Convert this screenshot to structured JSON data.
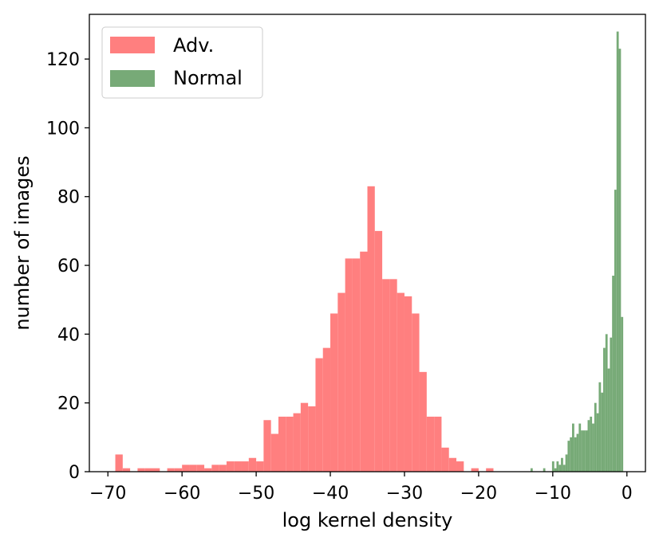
{
  "chart_data": {
    "type": "bar",
    "title": "",
    "xlabel": "log kernel density",
    "ylabel": "number of images",
    "xlim": [
      -72.5,
      2.5
    ],
    "ylim": [
      0,
      133
    ],
    "xticks": [
      -70,
      -60,
      -50,
      -40,
      -30,
      -20,
      -10,
      0
    ],
    "xtick_labels": [
      "−70",
      "−60",
      "−50",
      "−40",
      "−30",
      "−20",
      "−10",
      "0"
    ],
    "yticks": [
      0,
      20,
      40,
      60,
      80,
      100,
      120
    ],
    "ytick_labels": [
      "0",
      "20",
      "40",
      "60",
      "80",
      "100",
      "120"
    ],
    "grid": false,
    "legend_position": "top-left",
    "series": [
      {
        "name": "Adv.",
        "color": "#ff7f7f",
        "bin_width": 1,
        "bins": [
          [
            -69,
            5
          ],
          [
            -68,
            1
          ],
          [
            -66,
            1
          ],
          [
            -65,
            1
          ],
          [
            -64,
            1
          ],
          [
            -62,
            1
          ],
          [
            -61,
            1
          ],
          [
            -60,
            2
          ],
          [
            -59,
            2
          ],
          [
            -58,
            2
          ],
          [
            -57,
            1
          ],
          [
            -56,
            2
          ],
          [
            -55,
            2
          ],
          [
            -54,
            3
          ],
          [
            -53,
            3
          ],
          [
            -52,
            3
          ],
          [
            -51,
            4
          ],
          [
            -50,
            3
          ],
          [
            -49,
            15
          ],
          [
            -48,
            11
          ],
          [
            -47,
            16
          ],
          [
            -46,
            16
          ],
          [
            -45,
            17
          ],
          [
            -44,
            20
          ],
          [
            -43,
            19
          ],
          [
            -42,
            33
          ],
          [
            -41,
            36
          ],
          [
            -40,
            46
          ],
          [
            -39,
            52
          ],
          [
            -38,
            62
          ],
          [
            -37,
            62
          ],
          [
            -36,
            64
          ],
          [
            -35,
            83
          ],
          [
            -34,
            70
          ],
          [
            -33,
            56
          ],
          [
            -32,
            56
          ],
          [
            -31,
            52
          ],
          [
            -30,
            51
          ],
          [
            -29,
            46
          ],
          [
            -28,
            29
          ],
          [
            -27,
            16
          ],
          [
            -26,
            16
          ],
          [
            -25,
            7
          ],
          [
            -24,
            4
          ],
          [
            -23,
            3
          ],
          [
            -21,
            1
          ],
          [
            -19,
            1
          ]
        ]
      },
      {
        "name": "Normal",
        "color": "#77aa77",
        "bin_width": 0.3,
        "bins": [
          [
            -13.0,
            1
          ],
          [
            -11.3,
            1
          ],
          [
            -10.1,
            3
          ],
          [
            -9.8,
            1
          ],
          [
            -9.5,
            3
          ],
          [
            -9.2,
            2
          ],
          [
            -8.9,
            4
          ],
          [
            -8.6,
            2
          ],
          [
            -8.3,
            5
          ],
          [
            -8.0,
            9
          ],
          [
            -7.7,
            10
          ],
          [
            -7.4,
            14
          ],
          [
            -7.1,
            10
          ],
          [
            -6.8,
            11
          ],
          [
            -6.5,
            14
          ],
          [
            -6.2,
            12
          ],
          [
            -5.9,
            12
          ],
          [
            -5.6,
            12
          ],
          [
            -5.3,
            15
          ],
          [
            -5.0,
            16
          ],
          [
            -4.7,
            14
          ],
          [
            -4.4,
            20
          ],
          [
            -4.1,
            17
          ],
          [
            -3.8,
            26
          ],
          [
            -3.5,
            23
          ],
          [
            -3.2,
            36
          ],
          [
            -2.9,
            40
          ],
          [
            -2.6,
            30
          ],
          [
            -2.3,
            39
          ],
          [
            -2.0,
            57
          ],
          [
            -1.7,
            82
          ],
          [
            -1.4,
            128
          ],
          [
            -1.1,
            123
          ],
          [
            -0.8,
            45
          ]
        ]
      }
    ]
  }
}
